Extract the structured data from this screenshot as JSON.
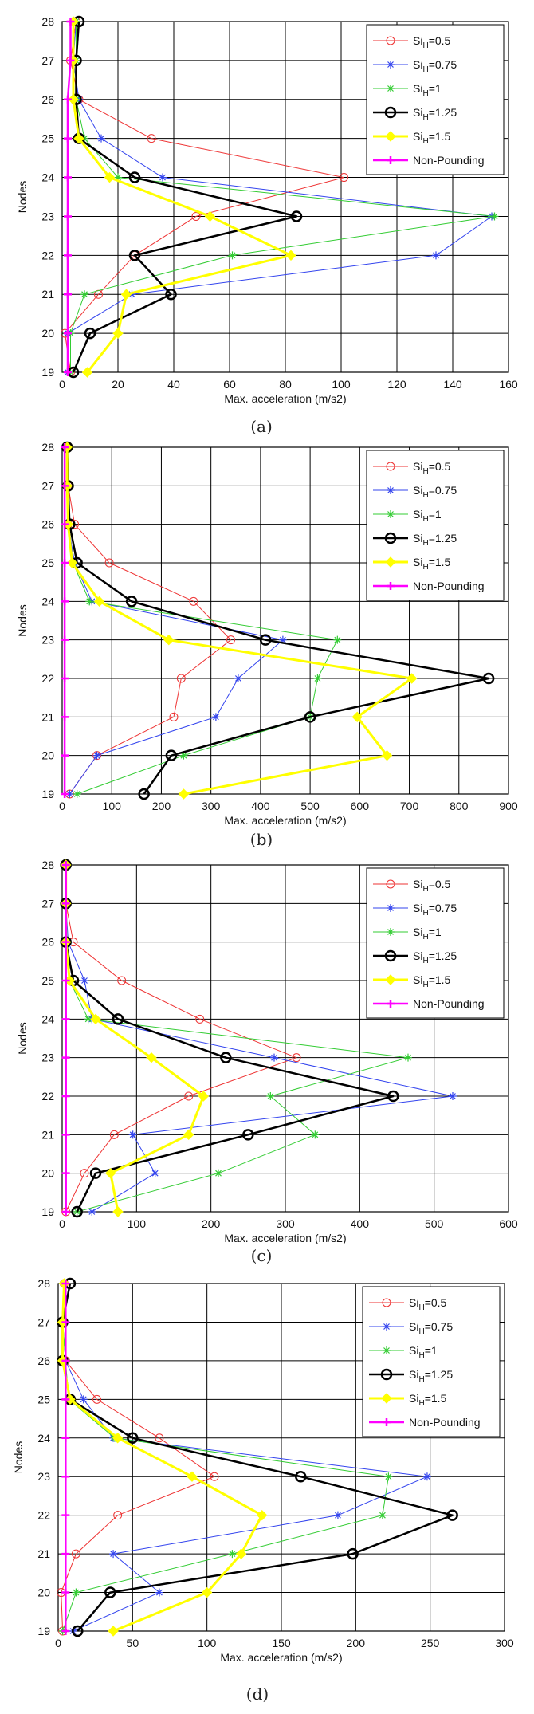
{
  "chart_data": [
    {
      "type": "line",
      "caption": "(a)",
      "xlabel": "Max. acceleration (m/s2)",
      "ylabel": "Nodes",
      "xlim": [
        0,
        160
      ],
      "xticks": [
        0,
        20,
        40,
        60,
        80,
        100,
        120,
        140,
        160
      ],
      "ylim": [
        19,
        28
      ],
      "yticks": [
        19,
        20,
        21,
        22,
        23,
        24,
        25,
        26,
        27,
        28
      ],
      "grid": true,
      "legend_position": "top-right",
      "series": [
        {
          "name": "Si_H=0.5",
          "legend_main": "Si",
          "legend_sub": "H",
          "legend_tail": "=0.5",
          "color": "#ee3333",
          "marker": "circle",
          "width": 1,
          "x": [
            3,
            1,
            13,
            26,
            48,
            101,
            32,
            6,
            3,
            5
          ],
          "y": [
            19,
            20,
            21,
            22,
            23,
            24,
            25,
            26,
            27,
            28
          ]
        },
        {
          "name": "Si_H=0.75",
          "legend_main": "Si",
          "legend_sub": "H",
          "legend_tail": "=0.75",
          "color": "#3344ee",
          "marker": "star",
          "width": 1,
          "x": [
            2,
            2,
            25,
            134,
            154,
            36,
            14,
            6,
            4,
            5
          ],
          "y": [
            19,
            20,
            21,
            22,
            23,
            24,
            25,
            26,
            27,
            28
          ]
        },
        {
          "name": "Si_H=1",
          "legend_main": "Si",
          "legend_sub": "H",
          "legend_tail": "=1",
          "color": "#33cc33",
          "marker": "star",
          "width": 1,
          "x": [
            3,
            3,
            8,
            61,
            155,
            20,
            8,
            5,
            5,
            5
          ],
          "y": [
            19,
            20,
            21,
            22,
            23,
            24,
            25,
            26,
            27,
            28
          ]
        },
        {
          "name": "Si_H=1.25",
          "legend_main": "Si",
          "legend_sub": "H",
          "legend_tail": "=1.25",
          "color": "#000000",
          "marker": "circle",
          "width": 2.5,
          "x": [
            4,
            10,
            39,
            26,
            84,
            26,
            6,
            5,
            5,
            6
          ],
          "y": [
            19,
            20,
            21,
            22,
            23,
            24,
            25,
            26,
            27,
            28
          ]
        },
        {
          "name": "Si_H=1.5",
          "legend_main": "Si",
          "legend_sub": "H",
          "legend_tail": "=1.5",
          "color": "#ffff00",
          "marker": "diamond",
          "width": 3,
          "x": [
            9,
            20,
            23,
            82,
            53,
            17,
            6,
            4,
            4,
            4
          ],
          "y": [
            19,
            20,
            21,
            22,
            23,
            24,
            25,
            26,
            27,
            28
          ]
        },
        {
          "name": "Non-Pounding",
          "legend_main": "Non-Pounding",
          "legend_sub": "",
          "legend_tail": "",
          "color": "#ff00ff",
          "marker": "plus",
          "width": 2.5,
          "x": [
            2,
            2,
            2,
            2,
            2,
            2,
            2,
            2,
            3,
            3
          ],
          "y": [
            19,
            20,
            21,
            22,
            23,
            24,
            25,
            26,
            27,
            28
          ]
        }
      ]
    },
    {
      "type": "line",
      "caption": "(b)",
      "xlabel": "Max. acceleration (m/s2)",
      "ylabel": "Nodes",
      "xlim": [
        0,
        900
      ],
      "xticks": [
        0,
        100,
        200,
        300,
        400,
        500,
        600,
        700,
        800,
        900
      ],
      "ylim": [
        19,
        28
      ],
      "yticks": [
        19,
        20,
        21,
        22,
        23,
        24,
        25,
        26,
        27,
        28
      ],
      "grid": true,
      "legend_position": "top-right",
      "series": [
        {
          "name": "Si_H=0.5",
          "legend_main": "Si",
          "legend_sub": "H",
          "legend_tail": "=0.5",
          "color": "#ee3333",
          "marker": "circle",
          "width": 1,
          "x": [
            15,
            70,
            225,
            240,
            340,
            265,
            95,
            25,
            12,
            10
          ],
          "y": [
            19,
            20,
            21,
            22,
            23,
            24,
            25,
            26,
            27,
            28
          ]
        },
        {
          "name": "Si_H=0.75",
          "legend_main": "Si",
          "legend_sub": "H",
          "legend_tail": "=0.75",
          "color": "#3344ee",
          "marker": "star",
          "width": 1,
          "x": [
            15,
            70,
            310,
            355,
            445,
            60,
            25,
            12,
            10,
            10
          ],
          "y": [
            19,
            20,
            21,
            22,
            23,
            24,
            25,
            26,
            27,
            28
          ]
        },
        {
          "name": "Si_H=1",
          "legend_main": "Si",
          "legend_sub": "H",
          "legend_tail": "=1",
          "color": "#33cc33",
          "marker": "star",
          "width": 1,
          "x": [
            30,
            245,
            500,
            515,
            555,
            55,
            22,
            12,
            10,
            10
          ],
          "y": [
            19,
            20,
            21,
            22,
            23,
            24,
            25,
            26,
            27,
            28
          ]
        },
        {
          "name": "Si_H=1.25",
          "legend_main": "Si",
          "legend_sub": "H",
          "legend_tail": "=1.25",
          "color": "#000000",
          "marker": "circle",
          "width": 2.5,
          "x": [
            165,
            220,
            500,
            860,
            410,
            140,
            30,
            15,
            12,
            10
          ],
          "y": [
            19,
            20,
            21,
            22,
            23,
            24,
            25,
            26,
            27,
            28
          ]
        },
        {
          "name": "Si_H=1.5",
          "legend_main": "Si",
          "legend_sub": "H",
          "legend_tail": "=1.5",
          "color": "#ffff00",
          "marker": "diamond",
          "width": 3,
          "x": [
            245,
            655,
            595,
            705,
            215,
            75,
            20,
            12,
            10,
            10
          ],
          "y": [
            19,
            20,
            21,
            22,
            23,
            24,
            25,
            26,
            27,
            28
          ]
        },
        {
          "name": "Non-Pounding",
          "legend_main": "Non-Pounding",
          "legend_sub": "",
          "legend_tail": "",
          "color": "#ff00ff",
          "marker": "plus",
          "width": 2.5,
          "x": [
            5,
            5,
            5,
            5,
            5,
            5,
            5,
            5,
            5,
            5
          ],
          "y": [
            19,
            20,
            21,
            22,
            23,
            24,
            25,
            26,
            27,
            28
          ]
        }
      ]
    },
    {
      "type": "line",
      "caption": "(c)",
      "xlabel": "Max. acceleration (m/s2)",
      "ylabel": "Nodes",
      "xlim": [
        0,
        600
      ],
      "xticks": [
        0,
        100,
        200,
        300,
        400,
        500,
        600
      ],
      "ylim": [
        19,
        28
      ],
      "yticks": [
        19,
        20,
        21,
        22,
        23,
        24,
        25,
        26,
        27,
        28
      ],
      "grid": true,
      "legend_position": "top-right",
      "series": [
        {
          "name": "Si_H=0.5",
          "legend_main": "Si",
          "legend_sub": "H",
          "legend_tail": "=0.5",
          "color": "#ee3333",
          "marker": "circle",
          "width": 1,
          "x": [
            5,
            30,
            70,
            170,
            315,
            185,
            80,
            15,
            5,
            5
          ],
          "y": [
            19,
            20,
            21,
            22,
            23,
            24,
            25,
            26,
            27,
            28
          ]
        },
        {
          "name": "Si_H=0.75",
          "legend_main": "Si",
          "legend_sub": "H",
          "legend_tail": "=0.75",
          "color": "#3344ee",
          "marker": "star",
          "width": 1,
          "x": [
            40,
            125,
            95,
            525,
            285,
            40,
            30,
            8,
            5,
            5
          ],
          "y": [
            19,
            20,
            21,
            22,
            23,
            24,
            25,
            26,
            27,
            28
          ]
        },
        {
          "name": "Si_H=1",
          "legend_main": "Si",
          "legend_sub": "H",
          "legend_tail": "=1",
          "color": "#33cc33",
          "marker": "star",
          "width": 1,
          "x": [
            20,
            210,
            340,
            280,
            465,
            35,
            10,
            5,
            5,
            5
          ],
          "y": [
            19,
            20,
            21,
            22,
            23,
            24,
            25,
            26,
            27,
            28
          ]
        },
        {
          "name": "Si_H=1.25",
          "legend_main": "Si",
          "legend_sub": "H",
          "legend_tail": "=1.25",
          "color": "#000000",
          "marker": "circle",
          "width": 2.5,
          "x": [
            20,
            45,
            250,
            445,
            220,
            75,
            15,
            5,
            5,
            5
          ],
          "y": [
            19,
            20,
            21,
            22,
            23,
            24,
            25,
            26,
            27,
            28
          ]
        },
        {
          "name": "Si_H=1.5",
          "legend_main": "Si",
          "legend_sub": "H",
          "legend_tail": "=1.5",
          "color": "#ffff00",
          "marker": "diamond",
          "width": 3,
          "x": [
            75,
            65,
            170,
            190,
            120,
            45,
            10,
            5,
            5,
            5
          ],
          "y": [
            19,
            20,
            21,
            22,
            23,
            24,
            25,
            26,
            27,
            28
          ]
        },
        {
          "name": "Non-Pounding",
          "legend_main": "Non-Pounding",
          "legend_sub": "",
          "legend_tail": "",
          "color": "#ff00ff",
          "marker": "plus",
          "width": 2.5,
          "x": [
            5,
            5,
            5,
            5,
            5,
            5,
            5,
            5,
            5,
            5
          ],
          "y": [
            19,
            20,
            21,
            22,
            23,
            24,
            25,
            26,
            27,
            28
          ]
        }
      ]
    },
    {
      "type": "line",
      "caption": "(d)",
      "xlabel": "Max. acceleration (m/s2)",
      "ylabel": "Nodes",
      "xlim": [
        0,
        300
      ],
      "xticks": [
        0,
        50,
        100,
        150,
        200,
        250,
        300
      ],
      "ylim": [
        19,
        28
      ],
      "yticks": [
        19,
        20,
        21,
        22,
        23,
        24,
        25,
        26,
        27,
        28
      ],
      "grid": true,
      "legend_position": "top-right",
      "series": [
        {
          "name": "Si_H=0.5",
          "legend_main": "Si",
          "legend_sub": "H",
          "legend_tail": "=0.5",
          "color": "#ee3333",
          "marker": "circle",
          "width": 1,
          "x": [
            3,
            2,
            12,
            40,
            105,
            68,
            26,
            5,
            3,
            4
          ],
          "y": [
            19,
            20,
            21,
            22,
            23,
            24,
            25,
            26,
            27,
            28
          ]
        },
        {
          "name": "Si_H=0.75",
          "legend_main": "Si",
          "legend_sub": "H",
          "legend_tail": "=0.75",
          "color": "#3344ee",
          "marker": "star",
          "width": 1,
          "x": [
            10,
            68,
            37,
            188,
            248,
            37,
            17,
            5,
            3,
            4
          ],
          "y": [
            19,
            20,
            21,
            22,
            23,
            24,
            25,
            26,
            27,
            28
          ]
        },
        {
          "name": "Si_H=1",
          "legend_main": "Si",
          "legend_sub": "H",
          "legend_tail": "=1",
          "color": "#33cc33",
          "marker": "star",
          "width": 1,
          "x": [
            3,
            12,
            117,
            218,
            222,
            38,
            7,
            5,
            3,
            4
          ],
          "y": [
            19,
            20,
            21,
            22,
            23,
            24,
            25,
            26,
            27,
            28
          ]
        },
        {
          "name": "Si_H=1.25",
          "legend_main": "Si",
          "legend_sub": "H",
          "legend_tail": "=1.25",
          "color": "#000000",
          "marker": "circle",
          "width": 2.5,
          "x": [
            13,
            35,
            198,
            265,
            163,
            50,
            8,
            3,
            3,
            8
          ],
          "y": [
            19,
            20,
            21,
            22,
            23,
            24,
            25,
            26,
            27,
            28
          ]
        },
        {
          "name": "Si_H=1.5",
          "legend_main": "Si",
          "legend_sub": "H",
          "legend_tail": "=1.5",
          "color": "#ffff00",
          "marker": "diamond",
          "width": 3,
          "x": [
            37,
            100,
            123,
            137,
            90,
            40,
            8,
            3,
            3,
            4
          ],
          "y": [
            19,
            20,
            21,
            22,
            23,
            24,
            25,
            26,
            27,
            28
          ]
        },
        {
          "name": "Non-Pounding",
          "legend_main": "Non-Pounding",
          "legend_sub": "",
          "legend_tail": "",
          "color": "#ff00ff",
          "marker": "plus",
          "width": 2.5,
          "x": [
            5,
            5,
            5,
            5,
            5,
            5,
            5,
            5,
            5,
            5
          ],
          "y": [
            19,
            20,
            21,
            22,
            23,
            24,
            25,
            26,
            27,
            28
          ]
        }
      ]
    }
  ]
}
